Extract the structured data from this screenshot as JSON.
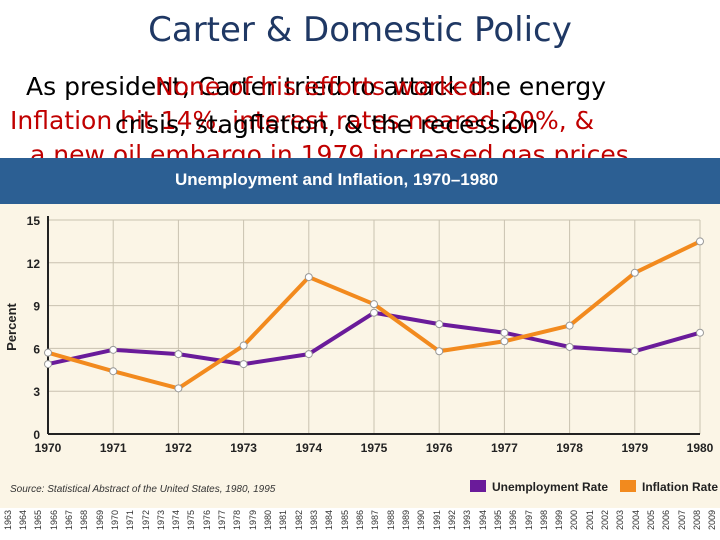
{
  "slide": {
    "title": "Carter & Domestic Policy",
    "line1": "As president, Carter tried to attack the energy",
    "line1_overlay": "None of his efforts worked:",
    "line2": "Inflation hit 14%, interest rates neared 20%, &",
    "line2_overlay": "crisis, stagflation, & the recession",
    "line3_partial": "a new oil embargo in 1979 increased gas prices"
  },
  "chart_data": {
    "type": "line",
    "title": "Unemployment and Inflation, 1970–1980",
    "ylabel": "Percent",
    "xlabel": "",
    "ylim": [
      0,
      15
    ],
    "yticks": [
      "0",
      "3",
      "6",
      "9",
      "12",
      "15"
    ],
    "categories": [
      "1970",
      "1971",
      "1972",
      "1973",
      "1974",
      "1975",
      "1976",
      "1977",
      "1978",
      "1979",
      "1980"
    ],
    "series": [
      {
        "name": "Unemployment Rate",
        "color": "#6a1b9a",
        "values": [
          4.9,
          5.9,
          5.6,
          4.9,
          5.6,
          8.5,
          7.7,
          7.1,
          6.1,
          5.8,
          7.1
        ]
      },
      {
        "name": "Inflation Rate",
        "color": "#f28a1e",
        "values": [
          5.7,
          4.4,
          3.2,
          6.2,
          11.0,
          9.1,
          5.8,
          6.5,
          7.6,
          11.3,
          13.5
        ]
      }
    ],
    "source": "Source: Statistical Abstract of the United States, 1980, 1995",
    "grid": true,
    "legend": "bottom-right"
  },
  "year_strip": [
    "1963",
    "1964",
    "1965",
    "1966",
    "1967",
    "1968",
    "1969",
    "1970",
    "1971",
    "1972",
    "1973",
    "1974",
    "1975",
    "1976",
    "1977",
    "1978",
    "1979",
    "1980",
    "1981",
    "1982",
    "1983",
    "1984",
    "1985",
    "1986",
    "1987",
    "1988",
    "1989",
    "1990",
    "1991",
    "1992",
    "1993",
    "1994",
    "1995",
    "1996",
    "1997",
    "1998",
    "1999",
    "2000",
    "2001",
    "2002",
    "2003",
    "2004",
    "2005",
    "2006",
    "2007",
    "2008",
    "2009"
  ]
}
